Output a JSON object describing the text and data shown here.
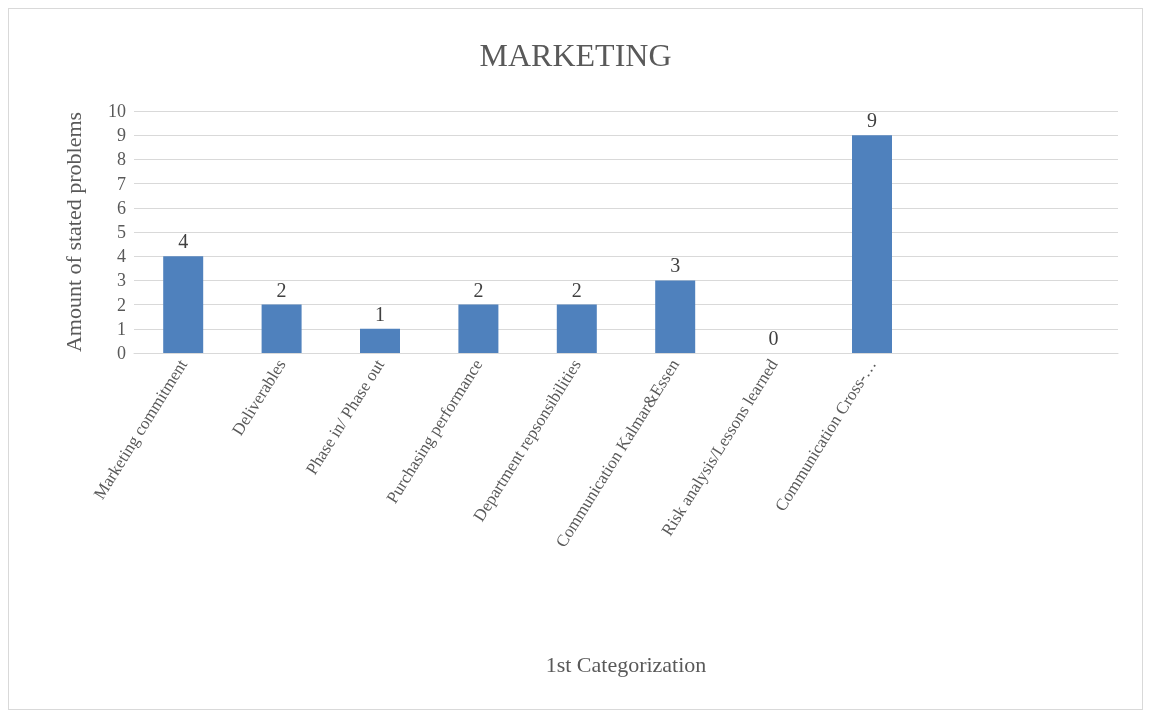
{
  "chart_data": {
    "type": "bar",
    "title": "MARKETING",
    "xlabel": "1st Categorization",
    "ylabel": "Amount of stated problems",
    "categories": [
      "Marketing commitment",
      "Deliverables",
      "Phase in/ Phase out",
      "Purchasing performance",
      "Department repsonsibilities",
      "Communication Kalmar&Essen",
      "Risk analysis/Lessons learned",
      "Communication Cross-…",
      null,
      null
    ],
    "values": [
      4,
      2,
      1,
      2,
      2,
      3,
      0,
      9,
      null,
      null
    ],
    "color": "#4f81bd",
    "ylim": [
      0,
      10
    ],
    "yticks": [
      0,
      1,
      2,
      3,
      4,
      5,
      6,
      7,
      8,
      9,
      10
    ],
    "grid": "y",
    "data_labels": true
  }
}
